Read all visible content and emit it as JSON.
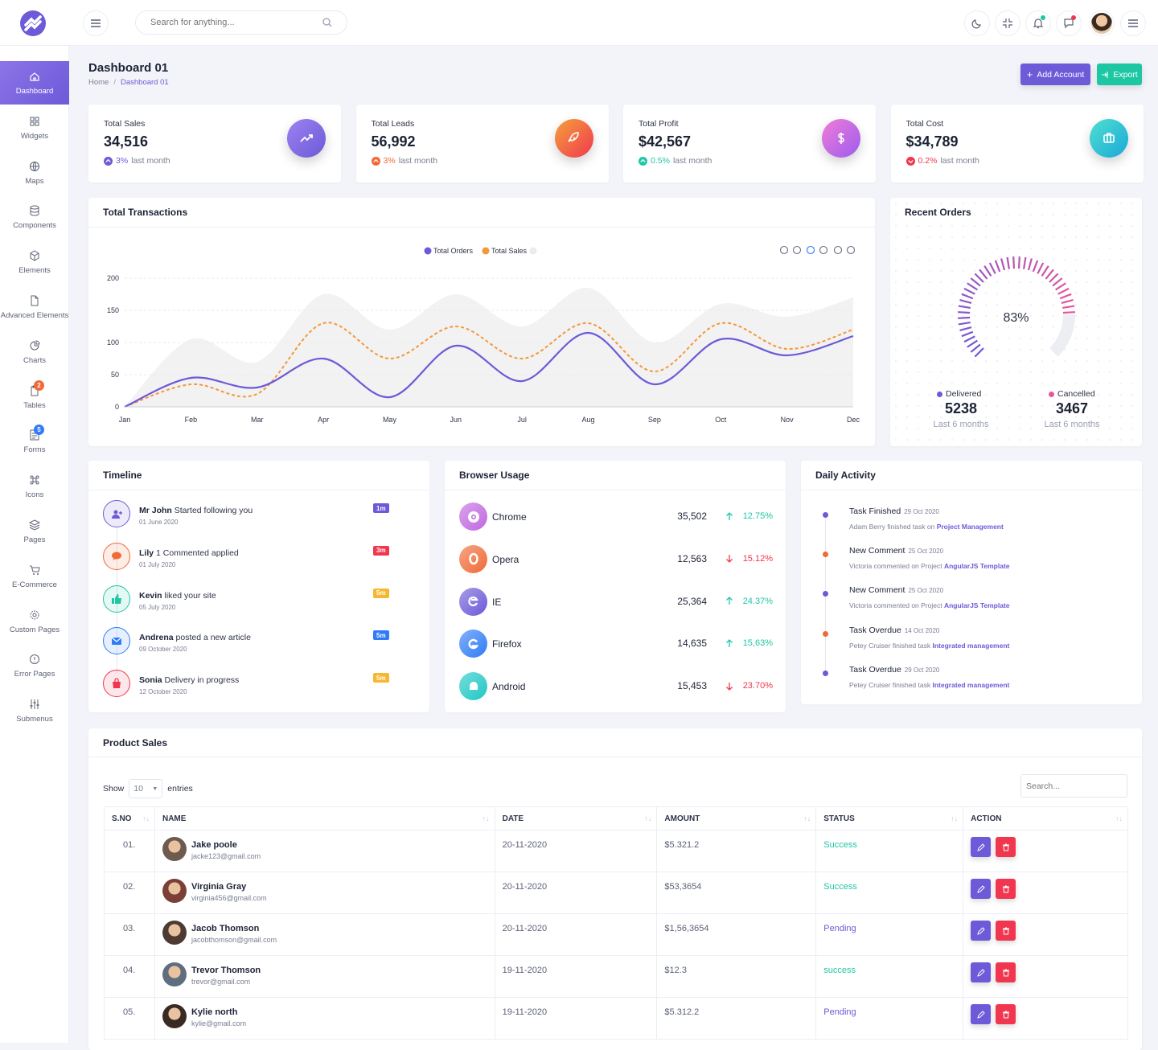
{
  "topbar": {
    "search_placeholder": "Search for anything...",
    "icons": [
      "menu-icon",
      "search-icon",
      "moon-icon",
      "fullscreen-exit-icon",
      "bell-icon",
      "chat-icon",
      "avatar",
      "menu-icon"
    ]
  },
  "sidebar": {
    "items": [
      {
        "label": "Dashboard",
        "icon": "home-icon",
        "active": true
      },
      {
        "label": "Widgets",
        "icon": "grid-icon"
      },
      {
        "label": "Maps",
        "icon": "globe-icon"
      },
      {
        "label": "Components",
        "icon": "database-icon"
      },
      {
        "label": "Elements",
        "icon": "box-icon"
      },
      {
        "label": "Advanced Elements",
        "icon": "file-icon"
      },
      {
        "label": "Charts",
        "icon": "pie-chart-icon"
      },
      {
        "label": "Tables",
        "icon": "clipboard-icon",
        "badge": "2"
      },
      {
        "label": "Forms",
        "icon": "form-icon",
        "badge": "5"
      },
      {
        "label": "Icons",
        "icon": "command-icon"
      },
      {
        "label": "Pages",
        "icon": "layers-icon"
      },
      {
        "label": "E-Commerce",
        "icon": "cart-icon"
      },
      {
        "label": "Custom Pages",
        "icon": "settings-icon"
      },
      {
        "label": "Error Pages",
        "icon": "alert-circle-icon"
      },
      {
        "label": "Submenus",
        "icon": "sliders-icon"
      }
    ]
  },
  "page": {
    "title": "Dashboard 01",
    "crumb_home": "Home",
    "crumb_sep": "/",
    "crumb_current": "Dashboard 01"
  },
  "buttons": {
    "add_account": "Add Account",
    "export": "Export",
    "add_color": "#6c5ad8",
    "export_color": "#1ec7a4"
  },
  "stats": [
    {
      "label": "Total Sales",
      "value": "34,516",
      "change": "3%",
      "suffix": "last month",
      "trend": "up",
      "color": "#6c5ad8"
    },
    {
      "label": "Total Leads",
      "value": "56,992",
      "change": "3%",
      "suffix": "last month",
      "trend": "up",
      "color": "#f06a35"
    },
    {
      "label": "Total Profit",
      "value": "$42,567",
      "change": "0.5%",
      "suffix": "last month",
      "trend": "up",
      "color": "#1ec7a4"
    },
    {
      "label": "Total Cost",
      "value": "$34,789",
      "change": "0.2%",
      "suffix": "last month",
      "trend": "down",
      "color": "#f0374f"
    }
  ],
  "transactions": {
    "title": "Total Transactions",
    "legend": [
      "Total Orders",
      "Total Sales"
    ]
  },
  "chart_data": {
    "type": "area",
    "title": "Total Transactions",
    "categories": [
      "Jan",
      "Feb",
      "Mar",
      "Apr",
      "May",
      "Jun",
      "Jul",
      "Aug",
      "Sep",
      "Oct",
      "Nov",
      "Dec"
    ],
    "ylim": [
      0,
      200
    ],
    "yticks": [
      0,
      50,
      100,
      150,
      200
    ],
    "grid": true,
    "legend_position": "top-center",
    "series": [
      {
        "name": "Total Orders",
        "color": "#6c5ad8",
        "values": [
          0,
          45,
          30,
          75,
          15,
          95,
          40,
          115,
          35,
          105,
          80,
          110
        ]
      },
      {
        "name": "Total Sales",
        "color": "#f4973b",
        "values": [
          0,
          35,
          20,
          130,
          75,
          125,
          75,
          130,
          55,
          130,
          90,
          120
        ]
      },
      {
        "name": "",
        "color": "#ececec",
        "values": [
          0,
          105,
          70,
          175,
          120,
          175,
          125,
          185,
          100,
          160,
          140,
          170
        ]
      }
    ]
  },
  "orders": {
    "title": "Recent Orders",
    "percent": "83%",
    "percent_value": 83,
    "delivered_label": "Delivered",
    "delivered_value": "5238",
    "delivered_sub": "Last 6 months",
    "cancelled_label": "Cancelled",
    "cancelled_value": "3467",
    "cancelled_sub": "Last 6 months"
  },
  "timeline": {
    "title": "Timeline",
    "items": [
      {
        "name": "Mr John",
        "text": "Started following you",
        "date": "01 June 2020",
        "badge": "1m",
        "badge_color": "#6c5ad8",
        "color": "#6c5ad8",
        "icon": "user-plus-icon"
      },
      {
        "name": "Lily",
        "text": "1 Commented applied",
        "date": "01 July 2020",
        "badge": "3m",
        "badge_color": "#f0374f",
        "color": "#f06a35",
        "icon": "comment-icon"
      },
      {
        "name": "Kevin",
        "text": "liked your site",
        "date": "05 July 2020",
        "badge": "5m",
        "badge_color": "#f7b731",
        "color": "#1ec7a4",
        "icon": "thumbs-up-icon"
      },
      {
        "name": "Andrena",
        "text": "posted a new article",
        "date": "09 October 2020",
        "badge": "5m",
        "badge_color": "#2f7cf6",
        "color": "#2f7cf6",
        "icon": "mail-icon"
      },
      {
        "name": "Sonia",
        "text": "Delivery in progress",
        "date": "12 October 2020",
        "badge": "5m",
        "badge_color": "#f7b731",
        "color": "#f0374f",
        "icon": "bag-icon"
      }
    ]
  },
  "browser": {
    "title": "Browser Usage",
    "items": [
      {
        "name": "Chrome",
        "count": "35,502",
        "pct": "12.75%",
        "trend": "up",
        "color": "#c067e0",
        "icon": "chrome-icon"
      },
      {
        "name": "Opera",
        "count": "12,563",
        "pct": "15.12%",
        "trend": "down",
        "color": "#f06a35",
        "icon": "opera-icon"
      },
      {
        "name": "IE",
        "count": "25,364",
        "pct": "24.37%",
        "trend": "up",
        "color": "#6c5ad8",
        "icon": "ie-icon"
      },
      {
        "name": "Firefox",
        "count": "14,635",
        "pct": "15,63%",
        "trend": "up",
        "color": "#2f7cf6",
        "icon": "firefox-icon"
      },
      {
        "name": "Android",
        "count": "15,453",
        "pct": "23.70%",
        "trend": "down",
        "color": "#1ec7c4",
        "icon": "android-icon"
      }
    ]
  },
  "daily": {
    "title": "Daily Activity",
    "items": [
      {
        "title": "Task Finished",
        "date": "29 Oct 2020",
        "text": "Adam Berry finished task on",
        "link": "Project Management",
        "dot": "#6c5ad8"
      },
      {
        "title": "New Comment",
        "date": "25 Oct 2020",
        "text": "Victoria commented on Project",
        "link": "AngularJS Template",
        "dot": "#f06a35"
      },
      {
        "title": "New Comment",
        "date": "25 Oct 2020",
        "text": "Victoria commented on Project",
        "link": "AngularJS Template",
        "dot": "#6c5ad8"
      },
      {
        "title": "Task Overdue",
        "date": "14 Oct 2020",
        "text": "Petey Cruiser finished task",
        "link": "Integrated management",
        "dot": "#f06a35"
      },
      {
        "title": "Task Overdue",
        "date": "29 Oct 2020",
        "text": "Petey Cruiser finished task",
        "link": "Integrated management",
        "dot": "#6c5ad8"
      }
    ]
  },
  "sales": {
    "title": "Product Sales",
    "show": "Show",
    "entries": "entries",
    "page_size": "10",
    "search_placeholder": "Search...",
    "columns": [
      "S.NO",
      "NAME",
      "DATE",
      "AMOUNT",
      "STATUS",
      "ACTION"
    ],
    "rows": [
      {
        "no": "01.",
        "name": "Jake poole",
        "email": "jacke123@gmail.com",
        "date": "20-11-2020",
        "amount": "$5.321.2",
        "status": "Success"
      },
      {
        "no": "02.",
        "name": "Virginia Gray",
        "email": "virginia456@gmail.com",
        "date": "20-11-2020",
        "amount": "$53,3654",
        "status": "Success"
      },
      {
        "no": "03.",
        "name": "Jacob Thomson",
        "email": "jacobthomson@gmail.com",
        "date": "20-11-2020",
        "amount": "$1,56,3654",
        "status": "Pending"
      },
      {
        "no": "04.",
        "name": "Trevor Thomson",
        "email": "trevor@gmail.com",
        "date": "19-11-2020",
        "amount": "$12.3",
        "status": "success"
      },
      {
        "no": "05.",
        "name": "Kylie north",
        "email": "kylie@gmail.com",
        "date": "19-11-2020",
        "amount": "$5.312.2",
        "status": "Pending"
      }
    ]
  }
}
